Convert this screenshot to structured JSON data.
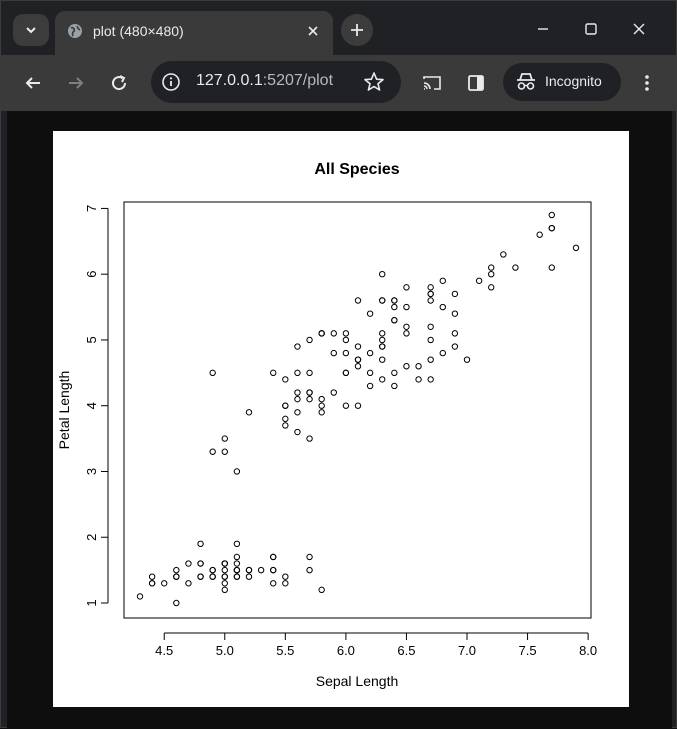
{
  "browser": {
    "tab_title": "plot (480×480)",
    "url_host": "127.0.0.1",
    "url_path": ":5207/plot",
    "incognito_label": "Incognito",
    "colors": {
      "frame": "#202124",
      "toolbar": "#3a3a3a",
      "text": "#e8eaed"
    }
  },
  "chart_data": {
    "type": "scatter",
    "title": "All Species",
    "xlabel": "Sepal Length",
    "ylabel": "Petal Length",
    "xlim": [
      4.3,
      7.9
    ],
    "ylim": [
      1.0,
      6.9
    ],
    "x_ticks": [
      4.5,
      5.0,
      5.5,
      6.0,
      6.5,
      7.0,
      7.5,
      8.0
    ],
    "x_tick_labels": [
      "4.5",
      "5.0",
      "5.5",
      "6.0",
      "6.5",
      "7.0",
      "7.5",
      "8.0"
    ],
    "y_ticks": [
      1,
      2,
      3,
      4,
      5,
      6,
      7
    ],
    "y_tick_labels": [
      "1",
      "2",
      "3",
      "4",
      "5",
      "6",
      "7"
    ],
    "grid": false,
    "points": [
      [
        5.1,
        1.4
      ],
      [
        4.9,
        1.4
      ],
      [
        4.7,
        1.3
      ],
      [
        4.6,
        1.5
      ],
      [
        5.0,
        1.4
      ],
      [
        5.4,
        1.7
      ],
      [
        4.6,
        1.4
      ],
      [
        5.0,
        1.5
      ],
      [
        4.4,
        1.4
      ],
      [
        4.9,
        1.5
      ],
      [
        5.4,
        1.5
      ],
      [
        4.8,
        1.6
      ],
      [
        4.8,
        1.4
      ],
      [
        4.3,
        1.1
      ],
      [
        5.8,
        1.2
      ],
      [
        5.7,
        1.5
      ],
      [
        5.4,
        1.3
      ],
      [
        5.1,
        1.4
      ],
      [
        5.7,
        1.7
      ],
      [
        5.1,
        1.5
      ],
      [
        5.4,
        1.7
      ],
      [
        5.1,
        1.5
      ],
      [
        4.6,
        1.0
      ],
      [
        5.1,
        1.7
      ],
      [
        4.8,
        1.9
      ],
      [
        5.0,
        1.6
      ],
      [
        5.0,
        1.6
      ],
      [
        5.2,
        1.5
      ],
      [
        5.2,
        1.4
      ],
      [
        4.7,
        1.6
      ],
      [
        4.8,
        1.6
      ],
      [
        5.4,
        1.5
      ],
      [
        5.2,
        1.5
      ],
      [
        5.5,
        1.4
      ],
      [
        4.9,
        1.5
      ],
      [
        5.0,
        1.2
      ],
      [
        5.5,
        1.3
      ],
      [
        4.9,
        1.4
      ],
      [
        4.4,
        1.3
      ],
      [
        5.1,
        1.5
      ],
      [
        5.0,
        1.3
      ],
      [
        4.5,
        1.3
      ],
      [
        4.4,
        1.3
      ],
      [
        5.0,
        1.6
      ],
      [
        5.1,
        1.9
      ],
      [
        4.8,
        1.4
      ],
      [
        5.1,
        1.6
      ],
      [
        4.6,
        1.4
      ],
      [
        5.3,
        1.5
      ],
      [
        5.0,
        1.4
      ],
      [
        7.0,
        4.7
      ],
      [
        6.4,
        4.5
      ],
      [
        6.9,
        4.9
      ],
      [
        5.5,
        4.0
      ],
      [
        6.5,
        4.6
      ],
      [
        5.7,
        4.5
      ],
      [
        6.3,
        4.7
      ],
      [
        4.9,
        3.3
      ],
      [
        6.6,
        4.6
      ],
      [
        5.2,
        3.9
      ],
      [
        5.0,
        3.5
      ],
      [
        5.9,
        4.2
      ],
      [
        6.0,
        4.0
      ],
      [
        6.1,
        4.7
      ],
      [
        5.6,
        3.6
      ],
      [
        6.7,
        4.4
      ],
      [
        5.6,
        4.5
      ],
      [
        5.8,
        4.1
      ],
      [
        6.2,
        4.5
      ],
      [
        5.6,
        3.9
      ],
      [
        5.9,
        4.8
      ],
      [
        6.1,
        4.0
      ],
      [
        6.3,
        4.9
      ],
      [
        6.1,
        4.7
      ],
      [
        6.4,
        4.3
      ],
      [
        6.6,
        4.4
      ],
      [
        6.8,
        4.8
      ],
      [
        6.7,
        5.0
      ],
      [
        6.0,
        4.5
      ],
      [
        5.7,
        3.5
      ],
      [
        5.5,
        3.8
      ],
      [
        5.5,
        3.7
      ],
      [
        5.8,
        3.9
      ],
      [
        6.0,
        5.1
      ],
      [
        5.4,
        4.5
      ],
      [
        6.0,
        4.5
      ],
      [
        6.7,
        4.7
      ],
      [
        6.3,
        4.4
      ],
      [
        5.6,
        4.1
      ],
      [
        5.5,
        4.0
      ],
      [
        5.5,
        4.4
      ],
      [
        6.1,
        4.6
      ],
      [
        5.8,
        4.0
      ],
      [
        5.0,
        3.3
      ],
      [
        5.6,
        4.2
      ],
      [
        5.7,
        4.2
      ],
      [
        5.7,
        4.2
      ],
      [
        6.2,
        4.3
      ],
      [
        5.1,
        3.0
      ],
      [
        5.7,
        4.1
      ],
      [
        6.3,
        6.0
      ],
      [
        5.8,
        5.1
      ],
      [
        7.1,
        5.9
      ],
      [
        6.3,
        5.6
      ],
      [
        6.5,
        5.8
      ],
      [
        7.6,
        6.6
      ],
      [
        4.9,
        4.5
      ],
      [
        7.3,
        6.3
      ],
      [
        6.7,
        5.8
      ],
      [
        7.2,
        6.1
      ],
      [
        6.5,
        5.1
      ],
      [
        6.4,
        5.3
      ],
      [
        6.8,
        5.5
      ],
      [
        5.7,
        5.0
      ],
      [
        5.8,
        5.1
      ],
      [
        6.4,
        5.3
      ],
      [
        6.5,
        5.5
      ],
      [
        7.7,
        6.7
      ],
      [
        7.7,
        6.9
      ],
      [
        6.0,
        5.0
      ],
      [
        6.9,
        5.7
      ],
      [
        5.6,
        4.9
      ],
      [
        7.7,
        6.7
      ],
      [
        6.3,
        4.9
      ],
      [
        6.7,
        5.7
      ],
      [
        7.2,
        6.0
      ],
      [
        6.2,
        4.8
      ],
      [
        6.1,
        4.9
      ],
      [
        6.4,
        5.6
      ],
      [
        7.2,
        5.8
      ],
      [
        7.4,
        6.1
      ],
      [
        7.9,
        6.4
      ],
      [
        6.4,
        5.6
      ],
      [
        6.3,
        5.1
      ],
      [
        6.1,
        5.6
      ],
      [
        7.7,
        6.1
      ],
      [
        6.3,
        5.6
      ],
      [
        6.4,
        5.5
      ],
      [
        6.0,
        4.8
      ],
      [
        6.9,
        5.4
      ],
      [
        6.7,
        5.6
      ],
      [
        6.9,
        5.1
      ],
      [
        5.8,
        5.1
      ],
      [
        6.8,
        5.9
      ],
      [
        6.7,
        5.7
      ],
      [
        6.7,
        5.2
      ],
      [
        6.3,
        5.0
      ],
      [
        6.5,
        5.2
      ],
      [
        6.2,
        5.4
      ],
      [
        5.9,
        5.1
      ]
    ]
  }
}
